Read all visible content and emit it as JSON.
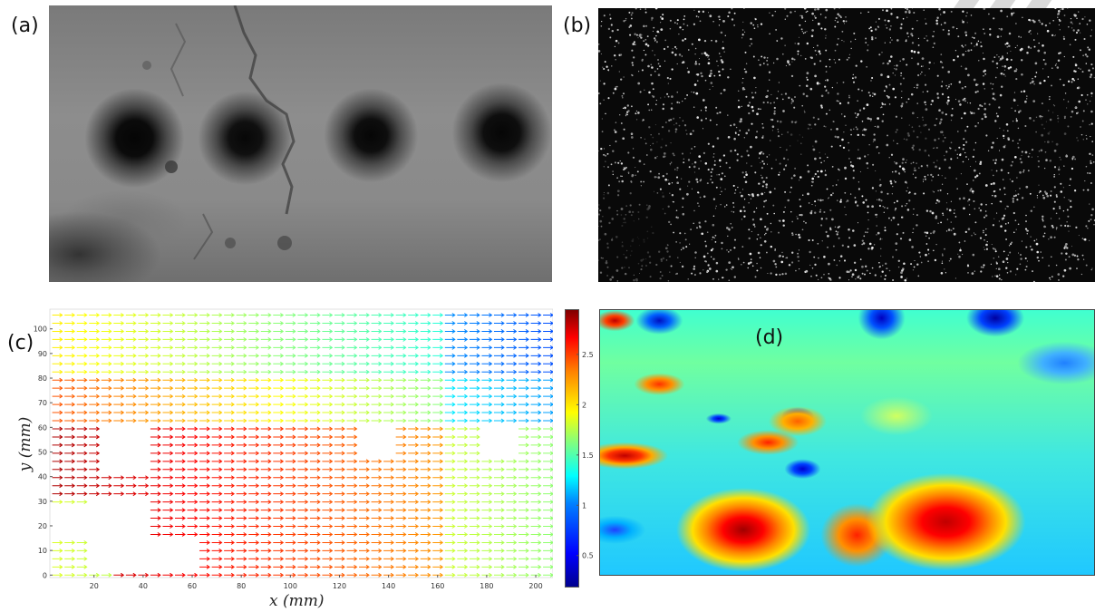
{
  "figure": {
    "labels": {
      "a": "(a)",
      "b": "(b)",
      "c": "(c)",
      "d": "(d)"
    }
  },
  "panel_c": {
    "xlabel": "x (mm)",
    "ylabel": "y (mm)",
    "xticks": [
      "20",
      "40",
      "60",
      "80",
      "100",
      "120",
      "140",
      "160",
      "180",
      "200"
    ],
    "yticks": [
      "0",
      "10",
      "20",
      "30",
      "40",
      "50",
      "60",
      "70",
      "80",
      "90",
      "100"
    ]
  },
  "colorbar": {
    "ticks": [
      "0.5",
      "1",
      "1.5",
      "2",
      "2.5"
    ],
    "range": [
      0.2,
      2.95
    ],
    "colormap": "jet"
  },
  "chart_data": [
    {
      "type": "quiver",
      "panel": "c",
      "xlabel": "x (mm)",
      "ylabel": "y (mm)",
      "xlim": [
        2,
        207
      ],
      "ylim": [
        -1,
        108
      ],
      "grid_spacing_mm": {
        "x": 5,
        "y": 3.3
      },
      "direction": "predominantly +x (left to right)",
      "color_scale": [
        0.2,
        2.95
      ]
    },
    {
      "type": "heatmap",
      "panel": "d",
      "colormap": "jet",
      "color_scale": [
        0.2,
        2.95
      ]
    }
  ]
}
